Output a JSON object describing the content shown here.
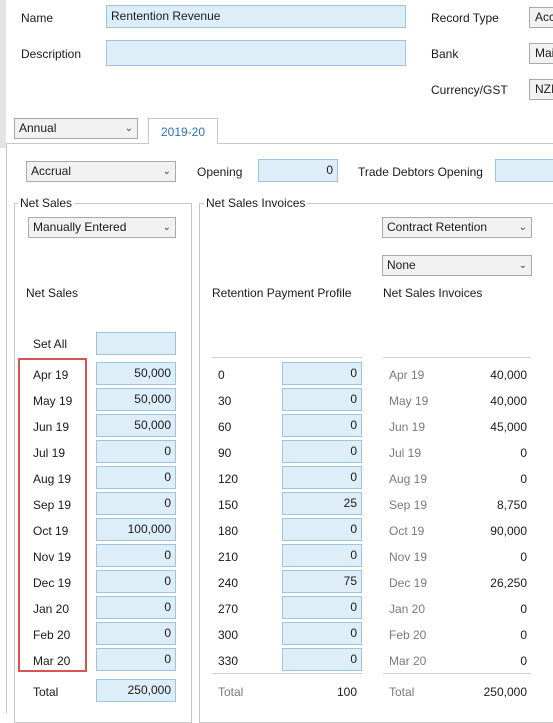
{
  "header": {
    "name_label": "Name",
    "name_value": "Rentention Revenue",
    "description_label": "Description",
    "description_value": "",
    "record_type_label": "Record Type",
    "record_type_value": "Acc",
    "bank_label": "Bank",
    "bank_value": "Mai",
    "currency_label": "Currency/GST",
    "currency_value": "NZI"
  },
  "period_select": "Annual",
  "tab": "2019-20",
  "accrual_select": "Accrual",
  "opening_label": "Opening",
  "opening_value": "0",
  "trade_debtors_label": "Trade Debtors Opening",
  "trade_debtors_value": "",
  "net_sales": {
    "legend": "Net Sales",
    "mode_select": "Manually Entered",
    "heading": "Net Sales",
    "set_all_label": "Set All",
    "set_all_value": "",
    "months": [
      {
        "label": "Apr 19",
        "value": "50,000"
      },
      {
        "label": "May 19",
        "value": "50,000"
      },
      {
        "label": "Jun 19",
        "value": "50,000"
      },
      {
        "label": "Jul 19",
        "value": "0"
      },
      {
        "label": "Aug 19",
        "value": "0"
      },
      {
        "label": "Sep 19",
        "value": "0"
      },
      {
        "label": "Oct 19",
        "value": "100,000"
      },
      {
        "label": "Nov 19",
        "value": "0"
      },
      {
        "label": "Dec 19",
        "value": "0"
      },
      {
        "label": "Jan 20",
        "value": "0"
      },
      {
        "label": "Feb 20",
        "value": "0"
      },
      {
        "label": "Mar 20",
        "value": "0"
      }
    ],
    "total_label": "Total",
    "total_value": "250,000"
  },
  "invoices": {
    "legend": "Net Sales Invoices",
    "contract_select": "Contract Retention",
    "none_select": "None",
    "profile_heading": "Retention Payment Profile",
    "invoices_heading": "Net Sales Invoices",
    "profile": [
      {
        "days": "0",
        "value": "0"
      },
      {
        "days": "30",
        "value": "0"
      },
      {
        "days": "60",
        "value": "0"
      },
      {
        "days": "90",
        "value": "0"
      },
      {
        "days": "120",
        "value": "0"
      },
      {
        "days": "150",
        "value": "25"
      },
      {
        "days": "180",
        "value": "0"
      },
      {
        "days": "210",
        "value": "0"
      },
      {
        "days": "240",
        "value": "75"
      },
      {
        "days": "270",
        "value": "0"
      },
      {
        "days": "300",
        "value": "0"
      },
      {
        "days": "330",
        "value": "0"
      }
    ],
    "profile_total_label": "Total",
    "profile_total_value": "100",
    "invoice_rows": [
      {
        "label": "Apr 19",
        "value": "40,000"
      },
      {
        "label": "May 19",
        "value": "40,000"
      },
      {
        "label": "Jun 19",
        "value": "45,000"
      },
      {
        "label": "Jul 19",
        "value": "0"
      },
      {
        "label": "Aug 19",
        "value": "0"
      },
      {
        "label": "Sep 19",
        "value": "8,750"
      },
      {
        "label": "Oct 19",
        "value": "90,000"
      },
      {
        "label": "Nov 19",
        "value": "0"
      },
      {
        "label": "Dec 19",
        "value": "26,250"
      },
      {
        "label": "Jan 20",
        "value": "0"
      },
      {
        "label": "Feb 20",
        "value": "0"
      },
      {
        "label": "Mar 20",
        "value": "0"
      }
    ],
    "invoice_total_label": "Total",
    "invoice_total_value": "250,000"
  },
  "highlight_color": "#d9534f"
}
